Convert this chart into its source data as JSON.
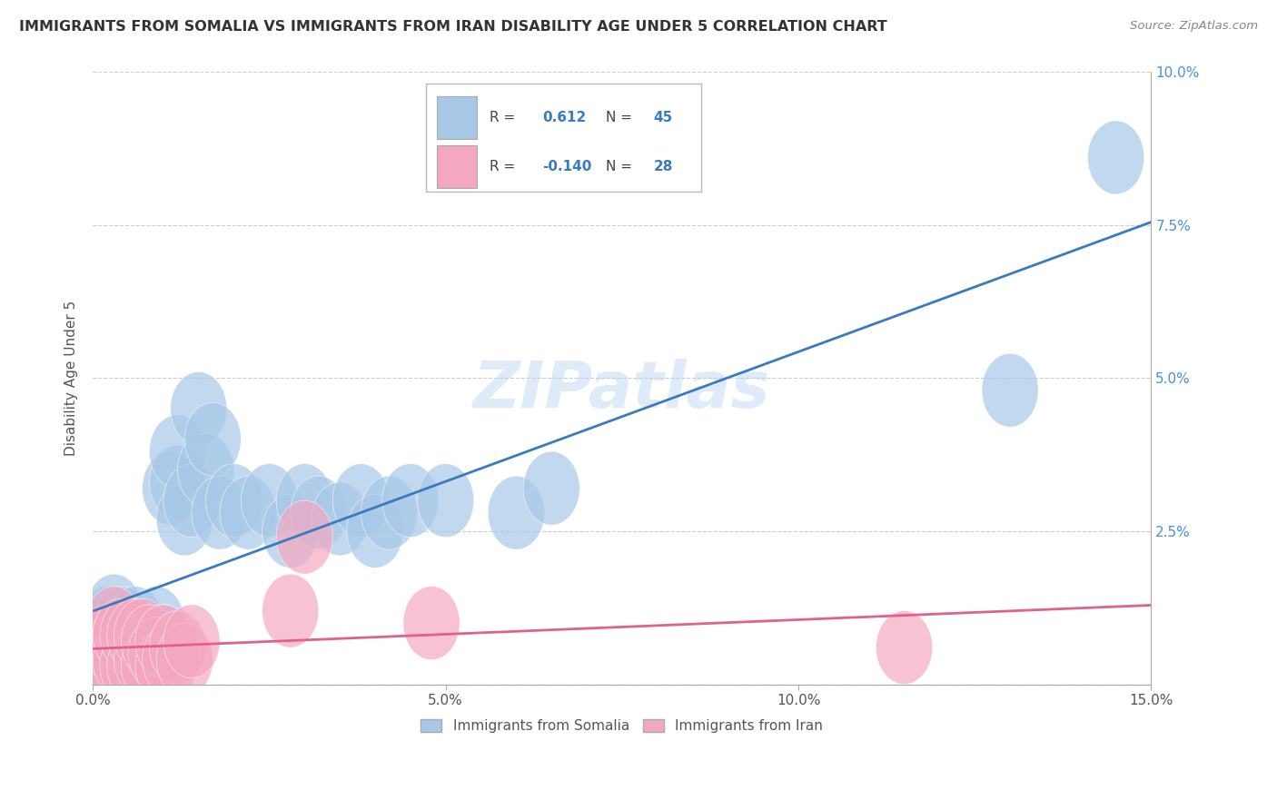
{
  "title": "IMMIGRANTS FROM SOMALIA VS IMMIGRANTS FROM IRAN DISABILITY AGE UNDER 5 CORRELATION CHART",
  "source": "Source: ZipAtlas.com",
  "ylabel": "Disability Age Under 5",
  "legend_somalia": "Immigrants from Somalia",
  "legend_iran": "Immigrants from Iran",
  "R_somalia": 0.612,
  "N_somalia": 45,
  "R_iran": -0.14,
  "N_iran": 28,
  "color_somalia": "#a8c8e8",
  "color_iran": "#f4a8c0",
  "color_line_somalia": "#3a7abf",
  "color_line_iran": "#e06090",
  "watermark": "ZIPatlas",
  "somalia_x": [
    0.001,
    0.001,
    0.002,
    0.002,
    0.003,
    0.003,
    0.003,
    0.004,
    0.004,
    0.005,
    0.005,
    0.006,
    0.006,
    0.007,
    0.007,
    0.008,
    0.008,
    0.009,
    0.01,
    0.01,
    0.011,
    0.012,
    0.012,
    0.013,
    0.014,
    0.015,
    0.016,
    0.017,
    0.018,
    0.02,
    0.022,
    0.025,
    0.028,
    0.03,
    0.032,
    0.035,
    0.038,
    0.04,
    0.042,
    0.045,
    0.05,
    0.06,
    0.065,
    0.13,
    0.145
  ],
  "somalia_y": [
    0.003,
    0.008,
    0.005,
    0.01,
    0.004,
    0.007,
    0.012,
    0.006,
    0.01,
    0.004,
    0.008,
    0.005,
    0.01,
    0.004,
    0.008,
    0.003,
    0.007,
    0.01,
    0.003,
    0.007,
    0.032,
    0.033,
    0.038,
    0.027,
    0.03,
    0.045,
    0.035,
    0.04,
    0.028,
    0.03,
    0.028,
    0.03,
    0.025,
    0.03,
    0.028,
    0.027,
    0.03,
    0.025,
    0.028,
    0.03,
    0.03,
    0.028,
    0.032,
    0.048,
    0.086
  ],
  "iran_x": [
    0.001,
    0.001,
    0.002,
    0.002,
    0.003,
    0.003,
    0.003,
    0.004,
    0.004,
    0.005,
    0.005,
    0.006,
    0.006,
    0.007,
    0.007,
    0.008,
    0.008,
    0.009,
    0.01,
    0.01,
    0.011,
    0.012,
    0.013,
    0.014,
    0.03,
    0.048,
    0.115,
    0.028
  ],
  "iran_y": [
    0.002,
    0.006,
    0.003,
    0.007,
    0.002,
    0.006,
    0.01,
    0.004,
    0.008,
    0.003,
    0.008,
    0.003,
    0.008,
    0.004,
    0.008,
    0.003,
    0.007,
    0.005,
    0.003,
    0.007,
    0.004,
    0.006,
    0.004,
    0.007,
    0.024,
    0.01,
    0.006,
    0.012
  ],
  "xlim": [
    0.0,
    0.15
  ],
  "ylim": [
    0.0,
    0.1
  ],
  "ytick_vals": [
    0.0,
    0.025,
    0.05,
    0.075,
    0.1
  ],
  "ytick_labels": [
    "",
    "2.5%",
    "5.0%",
    "7.5%",
    "10.0%"
  ],
  "xtick_vals": [
    0.0,
    0.05,
    0.1,
    0.15
  ],
  "xtick_labels": [
    "0.0%",
    "5.0%",
    "10.0%",
    "15.0%"
  ],
  "background_color": "#ffffff",
  "grid_color": "#cccccc"
}
